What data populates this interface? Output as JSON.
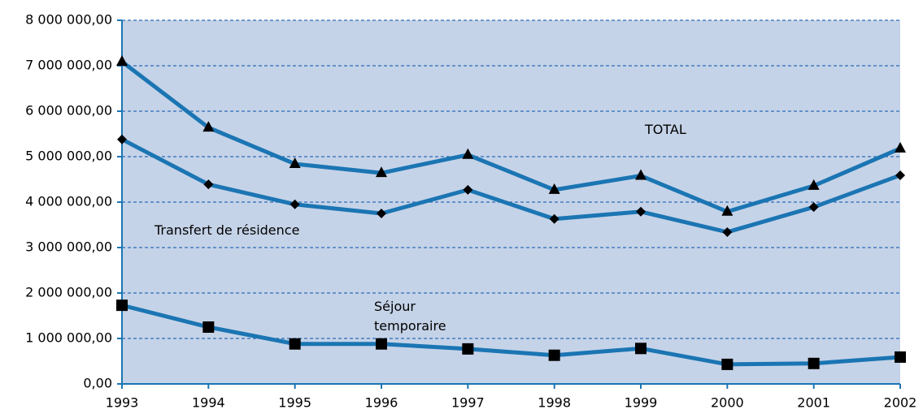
{
  "chart_data": {
    "type": "line",
    "x": [
      1993,
      1994,
      1995,
      1996,
      1997,
      1998,
      1999,
      2000,
      2001,
      2002
    ],
    "xlim": [
      1993,
      2002
    ],
    "xticks": [
      1993,
      1994,
      1995,
      1996,
      1997,
      1998,
      1999,
      2000,
      2001,
      2002
    ],
    "ylim": [
      0,
      8000000
    ],
    "yticks": [
      {
        "value": 0,
        "label": "0,00"
      },
      {
        "value": 1000000,
        "label": "1 000 000,00"
      },
      {
        "value": 2000000,
        "label": "2 000 000,00"
      },
      {
        "value": 3000000,
        "label": "3 000 000,00"
      },
      {
        "value": 4000000,
        "label": "4 000 000,00"
      },
      {
        "value": 5000000,
        "label": "5 000 000,00"
      },
      {
        "value": 6000000,
        "label": "6 000 000,00"
      },
      {
        "value": 7000000,
        "label": "7 000 000,00"
      },
      {
        "value": 8000000,
        "label": "8 000 000,00"
      }
    ],
    "grid": true,
    "series": [
      {
        "name": "TOTAL",
        "color": "#1b75b3",
        "marker": "triangle",
        "values": [
          7090000,
          5640000,
          4840000,
          4640000,
          5040000,
          4270000,
          4580000,
          3790000,
          4360000,
          5180000
        ]
      },
      {
        "name": "Transfert de résidence",
        "color": "#1b75b3",
        "marker": "diamond",
        "values": [
          5380000,
          4390000,
          3950000,
          3750000,
          4270000,
          3630000,
          3790000,
          3340000,
          3890000,
          4590000
        ]
      },
      {
        "name": "Séjour temporaire",
        "color": "#1b75b3",
        "marker": "square",
        "values": [
          1730000,
          1250000,
          880000,
          880000,
          770000,
          630000,
          780000,
          430000,
          450000,
          590000
        ]
      }
    ]
  }
}
